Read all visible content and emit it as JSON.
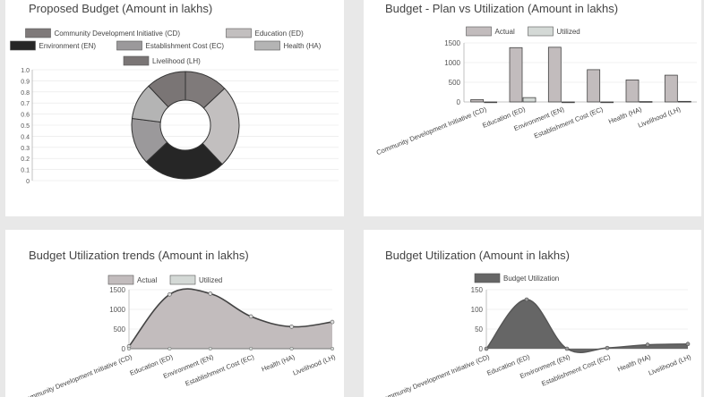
{
  "chart_data": [
    {
      "type": "pie",
      "title": "Proposed Budget (Amount in lakhs)",
      "categories": [
        "Community Development Initiative (CD)",
        "Education (ED)",
        "Environment (EN)",
        "Establishment Cost (EC)",
        "Health (HA)",
        "Livelihood (LH)"
      ],
      "values": [
        13,
        25,
        25,
        14,
        11,
        12
      ],
      "y_ticks": [
        "1.0",
        "0.9",
        "0.8",
        "0.7",
        "0.6",
        "0.5",
        "0.4",
        "0.3",
        "0.2",
        "0.1",
        "0"
      ],
      "ylim": [
        0,
        1
      ],
      "legend": "top",
      "colors": [
        "#7f7a7a",
        "#c2bfbf",
        "#262626",
        "#9b999b",
        "#b4b4b4",
        "#7a7575"
      ]
    },
    {
      "type": "bar",
      "title": "Budget - Plan vs Utilization (Amount in lakhs)",
      "categories": [
        "Community Development Initiative (CD)",
        "Education (ED)",
        "Environment (EN)",
        "Establishment Cost (EC)",
        "Health (HA)",
        "Livelihood (LH)"
      ],
      "series": [
        {
          "name": "Actual",
          "values": [
            60,
            1380,
            1390,
            820,
            560,
            680
          ]
        },
        {
          "name": "Utilized",
          "values": [
            0,
            110,
            0,
            0,
            10,
            15
          ]
        }
      ],
      "y_ticks": [
        "1500",
        "1000",
        "500",
        "0"
      ],
      "ylim": [
        0,
        1500
      ],
      "legend": "top",
      "colors": [
        "#c2bcbd",
        "#d4d9d6"
      ]
    },
    {
      "type": "area",
      "title": "Budget Utilization trends (Amount in lakhs)",
      "categories": [
        "Community Development Initiative (CD)",
        "Education (ED)",
        "Environment (EN)",
        "Establishment Cost (EC)",
        "Health (HA)",
        "Livelihood (LH)"
      ],
      "series": [
        {
          "name": "Actual",
          "values": [
            60,
            1380,
            1400,
            820,
            560,
            680
          ]
        },
        {
          "name": "Utilized",
          "values": [
            0,
            0,
            0,
            0,
            0,
            0
          ]
        }
      ],
      "y_ticks": [
        "1500",
        "1000",
        "500",
        "0"
      ],
      "ylim": [
        0,
        1500
      ],
      "legend": "top",
      "colors": [
        "#c2bcbd",
        "#d4d9d6"
      ]
    },
    {
      "type": "area",
      "title": "Budget Utilization (Amount in lakhs)",
      "categories": [
        "Community Development Initiative (CD)",
        "Education (ED)",
        "Environment (EN)",
        "Establishment Cost (EC)",
        "Health (HA)",
        "Livelihood (LH)"
      ],
      "series": [
        {
          "name": "Budget Utilization",
          "values": [
            0,
            125,
            0,
            2,
            10,
            12
          ]
        }
      ],
      "y_ticks": [
        "150",
        "100",
        "50",
        "0"
      ],
      "ylim": [
        0,
        150
      ],
      "legend": "top",
      "colors": [
        "#666666"
      ]
    }
  ]
}
